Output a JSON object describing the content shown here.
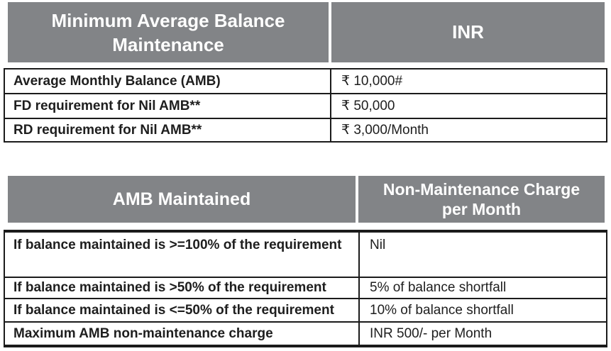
{
  "colors": {
    "header_bg": "#828487",
    "header_text": "#FFFFFF",
    "border": "#1B1B1B",
    "body_text": "#1E1E1E",
    "page_bg": "#FFFFFF"
  },
  "balance_table": {
    "header": {
      "col1": "Minimum Average Balance Maintenance",
      "col2": "INR"
    },
    "rows": [
      {
        "label": "Average Monthly Balance (AMB)",
        "value": "₹ 10,000#"
      },
      {
        "label": "FD requirement for Nil AMB**",
        "value": "₹ 50,000"
      },
      {
        "label": "RD requirement for Nil AMB**",
        "value": "₹ 3,000/Month"
      }
    ]
  },
  "charge_table": {
    "header": {
      "col1": "AMB Maintained",
      "col2": "Non-Maintenance Charge per Month"
    },
    "rows": [
      {
        "label": "If balance maintained is >=100% of the requirement",
        "value": "Nil"
      },
      {
        "label": "If balance maintained is >50% of the requirement",
        "value": "5% of balance shortfall"
      },
      {
        "label": "If balance maintained is <=50% of the requirement",
        "value": "10% of balance shortfall"
      },
      {
        "label": "Maximum AMB non-maintenance charge",
        "value": "INR 500/- per Month"
      }
    ]
  }
}
